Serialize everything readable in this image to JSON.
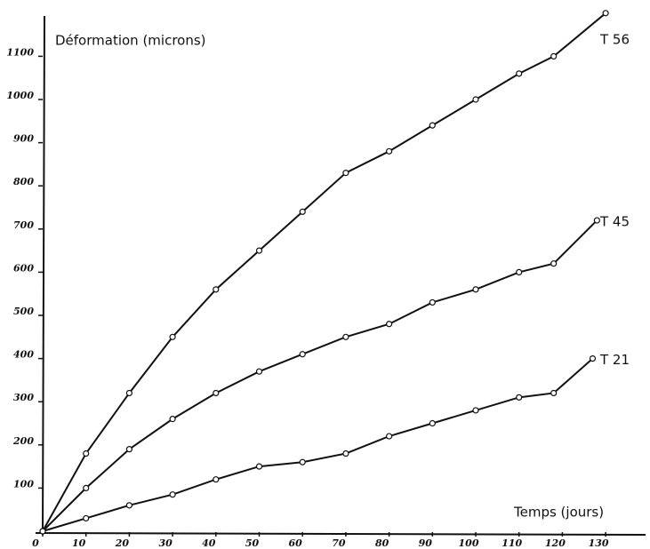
{
  "chart_data": {
    "type": "line",
    "y_label": "Déformation (microns)",
    "x_label": "Temps (jours)",
    "xlim": [
      0,
      138
    ],
    "ylim": [
      0,
      1200
    ],
    "xticks": [
      0,
      10,
      20,
      30,
      40,
      50,
      60,
      70,
      80,
      90,
      100,
      110,
      120,
      130
    ],
    "yticks": [
      100,
      200,
      300,
      400,
      500,
      600,
      700,
      800,
      900,
      1000,
      1100
    ],
    "series": [
      {
        "name": "T 56",
        "color": "#111111",
        "x": [
          0,
          10,
          20,
          30,
          40,
          50,
          60,
          70,
          80,
          90,
          100,
          110,
          118,
          130
        ],
        "values": [
          0,
          180,
          320,
          450,
          560,
          650,
          740,
          830,
          880,
          940,
          1000,
          1060,
          1100,
          1200
        ]
      },
      {
        "name": "T 45",
        "color": "#111111",
        "x": [
          0,
          10,
          20,
          30,
          40,
          50,
          60,
          70,
          80,
          90,
          100,
          110,
          118,
          128
        ],
        "values": [
          0,
          100,
          190,
          260,
          320,
          370,
          410,
          450,
          480,
          530,
          560,
          600,
          620,
          720
        ]
      },
      {
        "name": "T 21",
        "color": "#111111",
        "x": [
          0,
          10,
          20,
          30,
          40,
          50,
          60,
          70,
          80,
          90,
          100,
          110,
          118,
          127
        ],
        "values": [
          0,
          30,
          60,
          85,
          120,
          150,
          160,
          180,
          220,
          250,
          280,
          310,
          320,
          400
        ]
      }
    ]
  }
}
